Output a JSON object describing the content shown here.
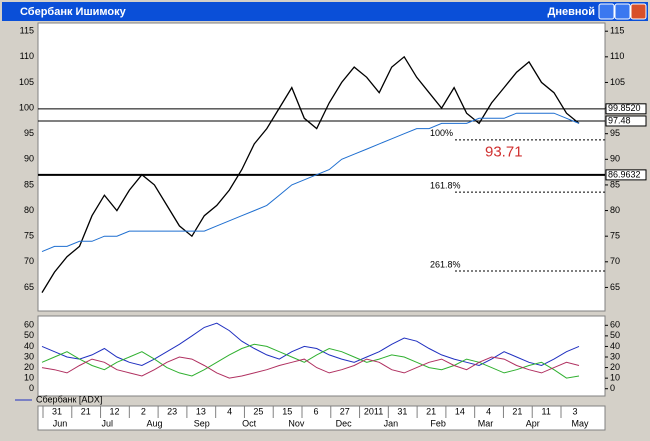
{
  "window": {
    "title": "Сбербанк Ишимоку",
    "timeframe": "Дневной"
  },
  "chart_data": [
    {
      "type": "line",
      "ylim": [
        60.4,
        116.6
      ],
      "yticks": [
        65,
        70,
        75,
        80,
        85,
        90,
        95,
        100,
        105,
        110,
        115
      ],
      "grid": false,
      "series": [
        {
          "color": "#000000",
          "values": [
            64,
            68,
            71,
            73,
            79,
            83,
            80,
            84,
            87,
            85,
            81,
            77,
            75,
            79,
            81,
            84,
            88,
            93,
            96,
            100,
            104,
            98,
            96,
            101,
            105,
            108,
            106,
            103,
            108,
            110,
            106,
            103,
            100,
            104,
            99,
            97,
            101,
            104,
            107,
            109,
            105,
            103,
            99,
            97
          ]
        },
        {
          "color": "#1f6fd0",
          "values": [
            72,
            73,
            73,
            74,
            74,
            75,
            75,
            76,
            76,
            76,
            76,
            76,
            76,
            76,
            77,
            78,
            79,
            80,
            81,
            83,
            85,
            86,
            87,
            88,
            90,
            91,
            92,
            93,
            94,
            95,
            96,
            96,
            97,
            97,
            97,
            98,
            98,
            98,
            99,
            99,
            99,
            99,
            98,
            97
          ]
        }
      ],
      "levels": [
        {
          "value": 99.852,
          "label": "99.8520"
        },
        {
          "value": 97.48,
          "label": "97.48"
        },
        {
          "value": 86.9632,
          "label": "86.9632"
        }
      ],
      "fib_levels": [
        {
          "value": 83.6,
          "label": "161.8%"
        },
        {
          "value": 68.2,
          "label": "261.8%"
        },
        {
          "value": 93.8,
          "label": "100%"
        }
      ],
      "annotation": {
        "value": 93.71
      }
    },
    {
      "type": "line",
      "legend": "Сбербанк [ADX]",
      "ylim": [
        -6.9,
        68.8
      ],
      "yticks": [
        0,
        10,
        20,
        30,
        40,
        50,
        60
      ],
      "series": [
        {
          "color": "#2030c0",
          "values": [
            40,
            35,
            30,
            28,
            32,
            38,
            30,
            25,
            22,
            28,
            35,
            42,
            50,
            58,
            62,
            55,
            45,
            38,
            32,
            28,
            35,
            40,
            38,
            32,
            28,
            25,
            30,
            35,
            42,
            48,
            45,
            38,
            32,
            28,
            25,
            22,
            28,
            35,
            30,
            25,
            22,
            28,
            35,
            40
          ]
        },
        {
          "color": "#30b030",
          "values": [
            25,
            30,
            35,
            28,
            22,
            18,
            25,
            30,
            35,
            28,
            20,
            15,
            12,
            18,
            25,
            32,
            38,
            42,
            40,
            35,
            30,
            25,
            32,
            38,
            35,
            30,
            25,
            28,
            32,
            30,
            25,
            20,
            18,
            22,
            28,
            25,
            20,
            15,
            18,
            22,
            25,
            18,
            10,
            12
          ]
        },
        {
          "color": "#b03060",
          "values": [
            20,
            18,
            15,
            22,
            28,
            25,
            18,
            15,
            12,
            18,
            25,
            30,
            28,
            22,
            15,
            10,
            12,
            15,
            18,
            22,
            25,
            28,
            20,
            15,
            18,
            22,
            28,
            25,
            18,
            15,
            20,
            25,
            28,
            22,
            18,
            25,
            30,
            28,
            22,
            18,
            15,
            20,
            25,
            22
          ]
        }
      ]
    }
  ],
  "date_axis": {
    "days": [
      "31",
      "21",
      "12",
      "2",
      "23",
      "13",
      "4",
      "25",
      "15",
      "6",
      "27",
      "2011",
      "31",
      "21",
      "14",
      "4",
      "21",
      "11",
      "3"
    ],
    "months": [
      "Jun",
      "Jul",
      "Aug",
      "Sep",
      "Oct",
      "Nov",
      "Dec",
      "Jan",
      "Feb",
      "Mar",
      "Apr",
      "May"
    ]
  }
}
